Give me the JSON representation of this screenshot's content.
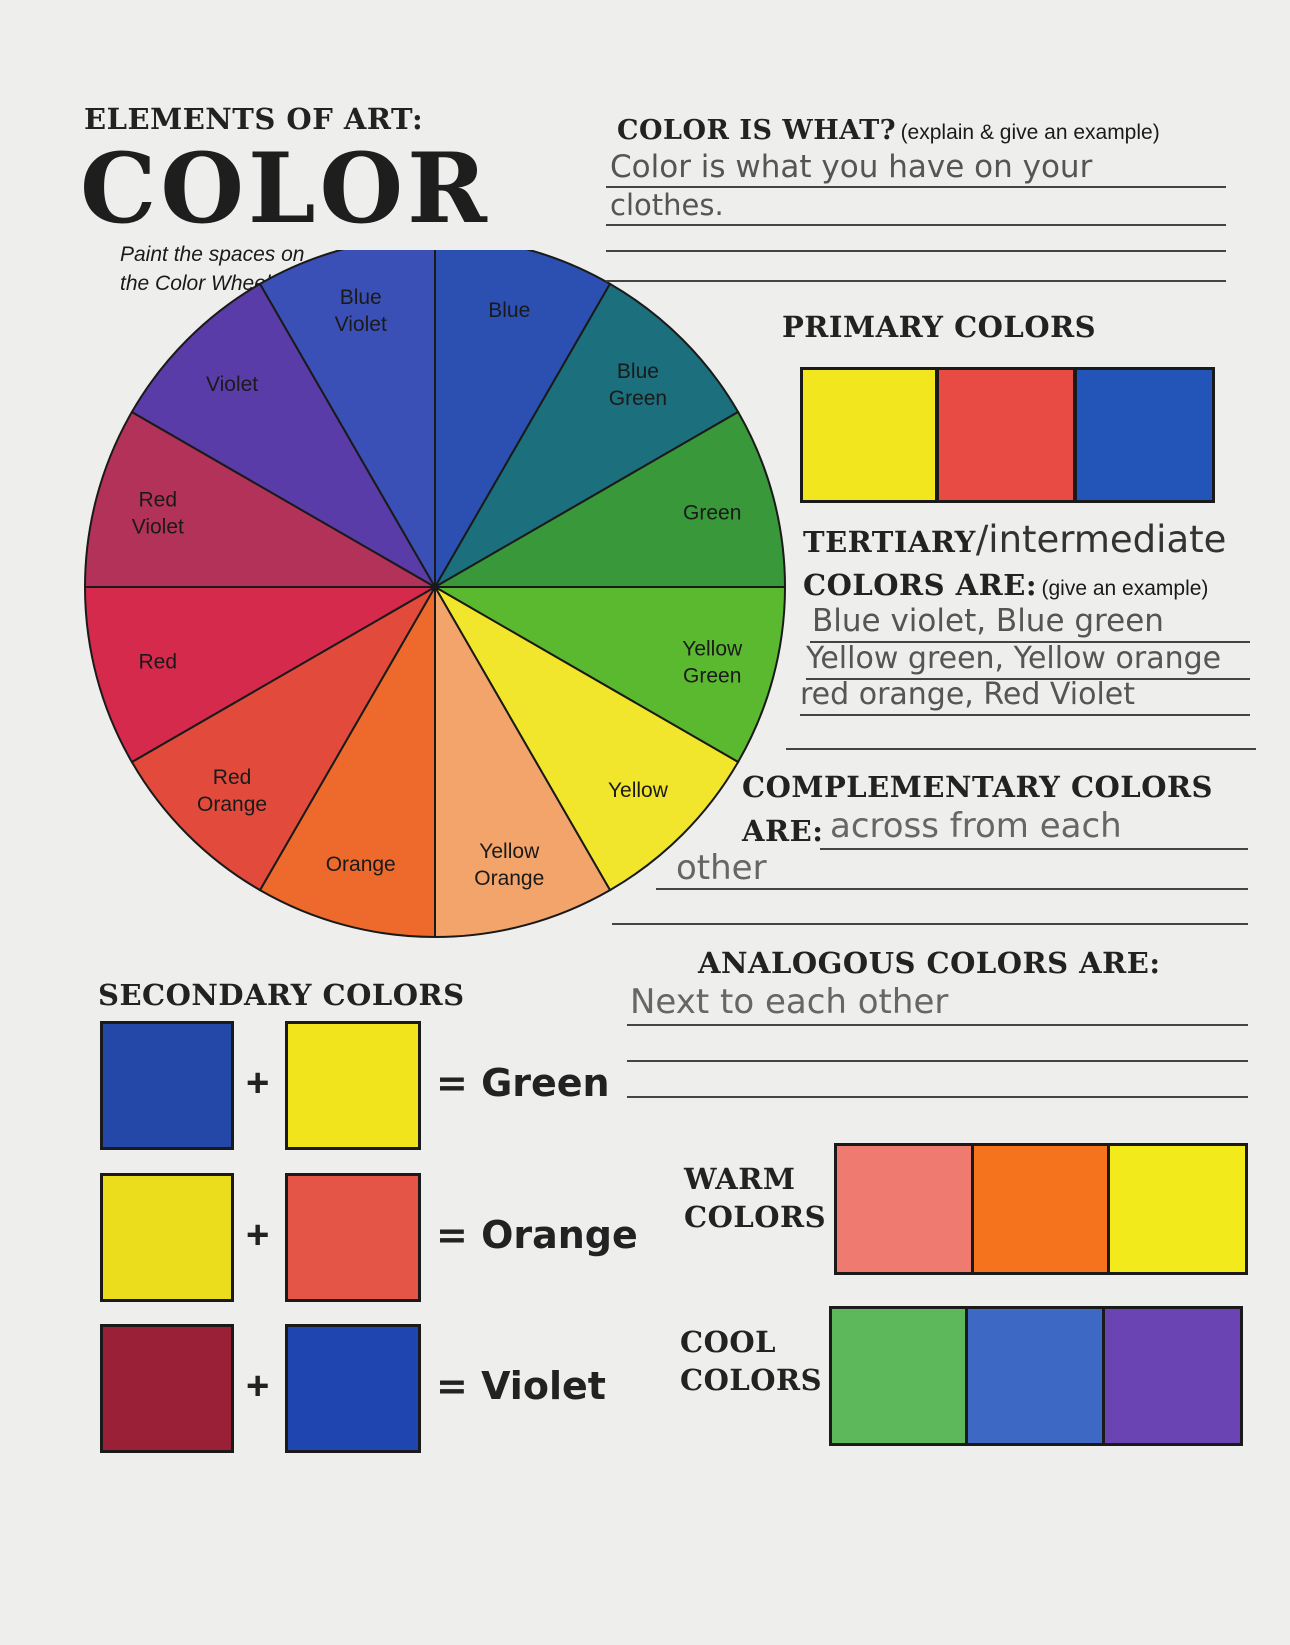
{
  "header": {
    "kicker": "ELEMENTS OF ART:",
    "title": "COLOR",
    "instruction_line1": "Paint the spaces on",
    "instruction_line2": "the Color Wheel"
  },
  "color_wheel": {
    "segments": [
      {
        "label": "Blue",
        "color": "#2b50b2"
      },
      {
        "label": "Blue Green",
        "color": "#1c6f7c"
      },
      {
        "label": "Green",
        "color": "#38983a"
      },
      {
        "label": "Yellow Green",
        "color": "#5bb930"
      },
      {
        "label": "Yellow",
        "color": "#f1e62c"
      },
      {
        "label": "Yellow Orange",
        "color": "#f2a46a"
      },
      {
        "label": "Orange",
        "color": "#ee6a2c"
      },
      {
        "label": "Red Orange",
        "color": "#e24b3c"
      },
      {
        "label": "Red",
        "color": "#d52a4c"
      },
      {
        "label": "Red Violet",
        "color": "#b33259"
      },
      {
        "label": "Violet",
        "color": "#5a3ca8"
      },
      {
        "label": "Blue Violet",
        "color": "#3b50b6"
      }
    ]
  },
  "color_is_what": {
    "heading": "COLOR IS WHAT?",
    "hint": "(explain & give an example)",
    "answer_line1": "Color is what you have on your",
    "answer_line2": "clothes."
  },
  "primary": {
    "heading": "PRIMARY COLORS",
    "swatches": [
      "#f2e61e",
      "#e84a44",
      "#2354b8"
    ]
  },
  "tertiary": {
    "heading1": "TERTIARY",
    "handwritten_suffix": "/intermediate",
    "heading2": "COLORS ARE:",
    "hint": "(give an example)",
    "answer_line1": "Blue violet, Blue green",
    "answer_line2": "Yellow green, Yellow orange",
    "answer_line3": "red orange, Red Violet"
  },
  "complementary": {
    "heading1": "COMPLEMENTARY COLORS",
    "heading2": "ARE:",
    "answer_line1": "across from each",
    "answer_line2": "other"
  },
  "analogous": {
    "heading": "ANALOGOUS COLORS ARE:",
    "answer": "Next to each other"
  },
  "secondary": {
    "heading": "SECONDARY COLORS",
    "rows": [
      {
        "a": "#2448a8",
        "b": "#f1e41c",
        "plus": "+",
        "result": "= Green"
      },
      {
        "a": "#ecdd1c",
        "b": "#e45548",
        "plus": "+",
        "result": "= Orange"
      },
      {
        "a": "#9a2038",
        "b": "#1f46b0",
        "plus": "+",
        "result": "= Violet"
      }
    ]
  },
  "warm": {
    "heading1": "WARM",
    "heading2": "COLORS",
    "swatches": [
      "#ef7a70",
      "#f6731e",
      "#f3ea1c"
    ]
  },
  "cool": {
    "heading1": "COOL",
    "heading2": "COLORS",
    "swatches": [
      "#5cb85a",
      "#3d68c4",
      "#6a44b2"
    ]
  }
}
